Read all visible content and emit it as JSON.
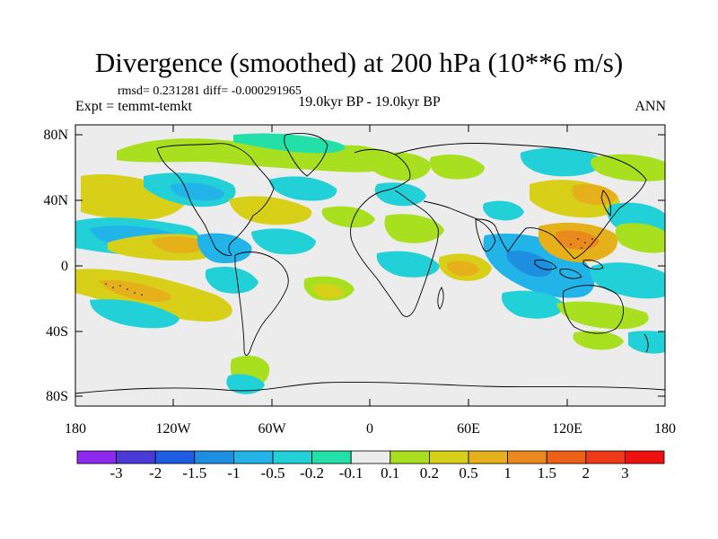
{
  "title": "Divergence (smoothed) at 200 hPa (10**6 m/s)",
  "stats": "rmsd= 0.231281 diff= -0.000291965",
  "experiment": "Expt = temmt-temkt",
  "period": "19.0kyr BP - 19.0kyr BP",
  "season": "ANN",
  "y_ticks": [
    "80N",
    "40N",
    "0",
    "40S",
    "80S"
  ],
  "x_ticks": [
    "180",
    "120W",
    "60W",
    "0",
    "60E",
    "120E",
    "180"
  ],
  "colorbar": {
    "labels": [
      "-3",
      "-2",
      "-1.5",
      "-1",
      "-0.5",
      "-0.2",
      "-0.1",
      "0.1",
      "0.2",
      "0.5",
      "1",
      "1.5",
      "2",
      "3"
    ],
    "colors": [
      "#8f28f0",
      "#4a3ad8",
      "#1e5ee6",
      "#1e8ee0",
      "#22b4e8",
      "#22d0d8",
      "#22e0a8",
      "#ececec",
      "#a8e020",
      "#d8d018",
      "#e6b01a",
      "#ea8a1e",
      "#ee6018",
      "#ee3a18",
      "#f01010"
    ]
  },
  "colors": {
    "land_bg": "#ececec",
    "coast": "#000000"
  }
}
